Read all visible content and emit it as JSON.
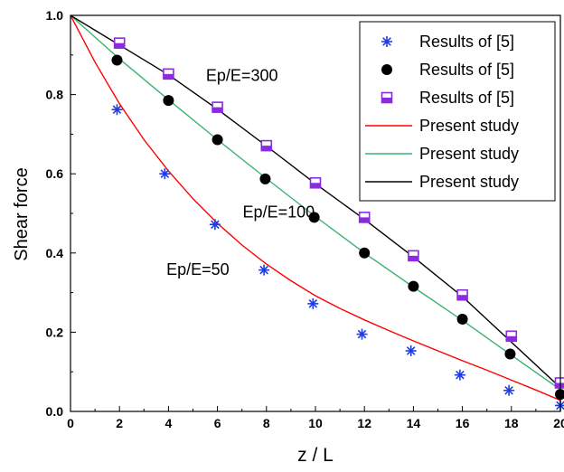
{
  "chart_data": {
    "type": "line",
    "title": "",
    "xlabel": "z / L",
    "ylabel": "Shear force",
    "xlim": [
      0,
      20
    ],
    "ylim": [
      0,
      1.0
    ],
    "x_ticks": [
      "0",
      "2",
      "4",
      "6",
      "8",
      "10",
      "12",
      "14",
      "16",
      "18",
      "20"
    ],
    "y_ticks": [
      "0.0",
      "0.2",
      "0.4",
      "0.6",
      "0.8",
      "1.0"
    ],
    "grid": false,
    "legend_position": "top-right",
    "annotations": [
      {
        "text": "Ep/E=300",
        "x": 7.0,
        "y": 0.835
      },
      {
        "text": "Ep/E=100",
        "x": 8.5,
        "y": 0.49
      },
      {
        "text": "Ep/E=50",
        "x": 5.2,
        "y": 0.345
      }
    ],
    "series": [
      {
        "name": "Results of [5]",
        "kind": "scatter",
        "marker": "asterisk",
        "color": "#1f3de0",
        "x": [
          1.9,
          3.85,
          5.9,
          7.9,
          9.9,
          11.9,
          13.9,
          15.9,
          17.9,
          20
        ],
        "y": [
          0.762,
          0.6,
          0.472,
          0.357,
          0.272,
          0.195,
          0.153,
          0.092,
          0.053,
          0.015
        ]
      },
      {
        "name": "Results of [5]",
        "kind": "scatter",
        "marker": "filled-circle",
        "color": "#000000",
        "x": [
          1.9,
          4.0,
          6.0,
          7.95,
          9.95,
          12.0,
          14.0,
          16.0,
          17.95,
          20
        ],
        "y": [
          0.887,
          0.785,
          0.686,
          0.587,
          0.49,
          0.4,
          0.316,
          0.233,
          0.145,
          0.043
        ]
      },
      {
        "name": "Results of [5]",
        "kind": "scatter",
        "marker": "half-filled-square",
        "color": "#8a2be2",
        "x": [
          2.0,
          4.0,
          6.0,
          8.0,
          10.0,
          12.0,
          14.0,
          16.0,
          18.0,
          20
        ],
        "y": [
          0.93,
          0.852,
          0.768,
          0.671,
          0.577,
          0.49,
          0.393,
          0.294,
          0.19,
          0.072
        ]
      },
      {
        "name": "Present study",
        "kind": "line",
        "color": "#ff0000",
        "x": [
          0,
          1,
          2,
          3,
          4,
          5,
          6,
          7,
          8,
          9,
          10,
          11,
          12,
          13,
          14,
          15,
          16,
          17,
          18,
          19,
          20
        ],
        "y": [
          1.0,
          0.882,
          0.777,
          0.686,
          0.607,
          0.537,
          0.475,
          0.42,
          0.372,
          0.33,
          0.292,
          0.26,
          0.231,
          0.204,
          0.178,
          0.153,
          0.128,
          0.104,
          0.079,
          0.054,
          0.028
        ]
      },
      {
        "name": "Present study",
        "kind": "line",
        "color": "#3cb371",
        "x": [
          0,
          2,
          4,
          6,
          8,
          10,
          12,
          14,
          16,
          18,
          20
        ],
        "y": [
          1.0,
          0.89,
          0.787,
          0.686,
          0.588,
          0.492,
          0.4,
          0.314,
          0.23,
          0.142,
          0.055
        ]
      },
      {
        "name": "Present study",
        "kind": "line",
        "color": "#000000",
        "x": [
          0,
          2,
          4,
          6,
          8,
          10,
          12,
          14,
          16,
          18,
          20
        ],
        "y": [
          1.0,
          0.925,
          0.85,
          0.763,
          0.67,
          0.575,
          0.485,
          0.39,
          0.29,
          0.175,
          0.06
        ]
      }
    ]
  }
}
